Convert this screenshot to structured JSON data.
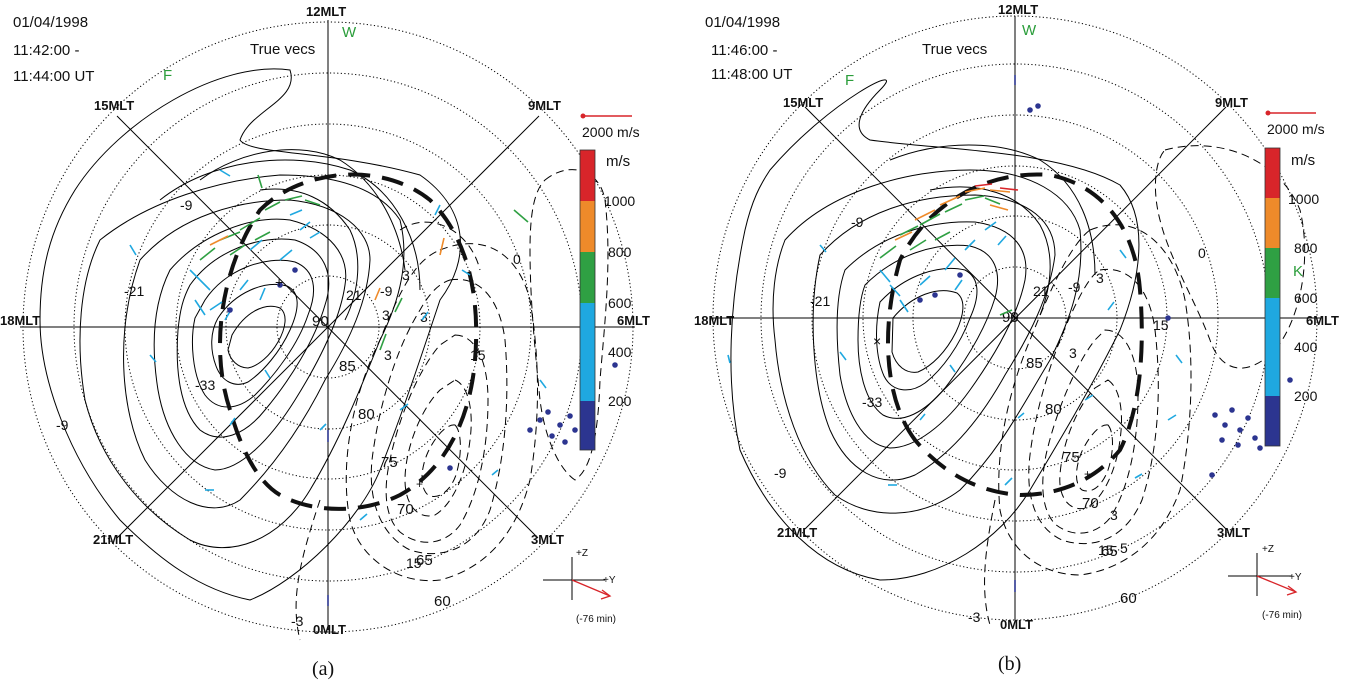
{
  "colors": {
    "vec_darkblue": "#2c3590",
    "vec_lightblue": "#1fa8e0",
    "vec_green": "#2fa043",
    "vec_orange": "#ee8a2a",
    "vec_red": "#d8252a",
    "label_green": "#2a9d3a"
  },
  "panels": [
    {
      "caption": "(a)",
      "date": "01/04/1998",
      "time_start": "11:42:00 -",
      "time_end": "11:44:00 UT",
      "vec_label": "True vecs",
      "mlt_labels": {
        "top": "12MLT",
        "bottom": "0MLT",
        "left": "18MLT",
        "right": "6MLT",
        "tl": "15MLT",
        "tr": "9MLT",
        "bl": "21MLT",
        "br": "3MLT"
      },
      "lat_labels": [
        "85",
        "80",
        "75",
        "70",
        "65",
        "60"
      ],
      "pole_label": "90",
      "letters": {
        "w": "W",
        "f": "F",
        "k": "K"
      },
      "contour_labels": [
        "-9",
        "-21",
        "-33",
        "-9",
        "21",
        "-9",
        "3",
        "3",
        "15",
        "0",
        "3",
        "15",
        "3",
        "-3"
      ],
      "scale_vec_label": "2000 m/s",
      "colorbar": {
        "unit": "m/s",
        "ticks": [
          "1000",
          "800",
          "600",
          "400",
          "200"
        ]
      },
      "imf": {
        "z": "+Z",
        "y": "+Y",
        "lag": "(-76 min)"
      }
    },
    {
      "caption": "(b)",
      "date": "01/04/1998",
      "time_start": "11:46:00 -",
      "time_end": "11:48:00 UT",
      "vec_label": "True vecs",
      "mlt_labels": {
        "top": "12MLT",
        "bottom": "0MLT",
        "left": "18MLT",
        "right": "6MLT",
        "tl": "15MLT",
        "tr": "9MLT",
        "bl": "21MLT",
        "br": "3MLT"
      },
      "lat_labels": [
        "85",
        "80",
        "75",
        "70",
        "65",
        "60"
      ],
      "pole_label": "90",
      "letters": {
        "w": "W",
        "f": "F",
        "k": "K"
      },
      "contour_labels": [
        "-9",
        "-21",
        "-33",
        "-9",
        "21",
        "-9",
        "3",
        "3",
        "15",
        "0",
        "3",
        "15",
        "5",
        "-3"
      ],
      "scale_vec_label": "2000 m/s",
      "colorbar": {
        "unit": "m/s",
        "ticks": [
          "1000",
          "800",
          "600",
          "400",
          "200"
        ]
      },
      "imf": {
        "z": "+Z",
        "y": "+Y",
        "lag": "(-76 min)"
      }
    }
  ]
}
